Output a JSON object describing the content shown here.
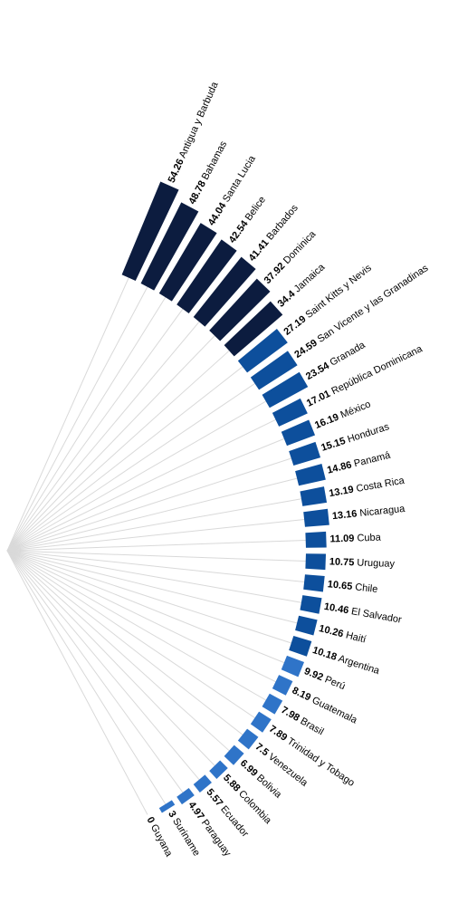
{
  "chart_data": {
    "type": "bar",
    "layout": "radial",
    "title": "",
    "categories": [
      "Antigua y Barbuda",
      "Bahamas",
      "Santa Lucia",
      "Belice",
      "Barbados",
      "Dominica",
      "Jamaica",
      "Saint Kitts y Nevis",
      "San Vicente y las Granadinas",
      "Granada",
      "República Dominicana",
      "México",
      "Honduras",
      "Panamá",
      "Costa Rica",
      "Nicaragua",
      "Cuba",
      "Uruguay",
      "Chile",
      "El Salvador",
      "Haití",
      "Argentina",
      "Perú",
      "Guatemala",
      "Brasil",
      "Trinidad y Tobago",
      "Venezuela",
      "Bolivia",
      "Colombia",
      "Ecuador",
      "Paraguay",
      "Suriname",
      "Guyana"
    ],
    "values": [
      54.26,
      48.78,
      44.04,
      42.54,
      41.41,
      37.92,
      34.4,
      27.19,
      24.59,
      23.54,
      17.01,
      16.19,
      15.15,
      14.86,
      13.19,
      13.16,
      11.09,
      10.75,
      10.65,
      10.46,
      10.26,
      10.18,
      9.92,
      8.19,
      7.98,
      7.89,
      7.5,
      6.99,
      5.88,
      5.57,
      4.97,
      3,
      0
    ],
    "color_scale": [
      {
        "min": 30,
        "color": "#0c1c3f"
      },
      {
        "min": 10,
        "color": "#0d4f9c"
      },
      {
        "min": 0,
        "color": "#2f74c8"
      }
    ],
    "spoke_color": "#d9d9d9",
    "grid": false,
    "legend": "none"
  }
}
